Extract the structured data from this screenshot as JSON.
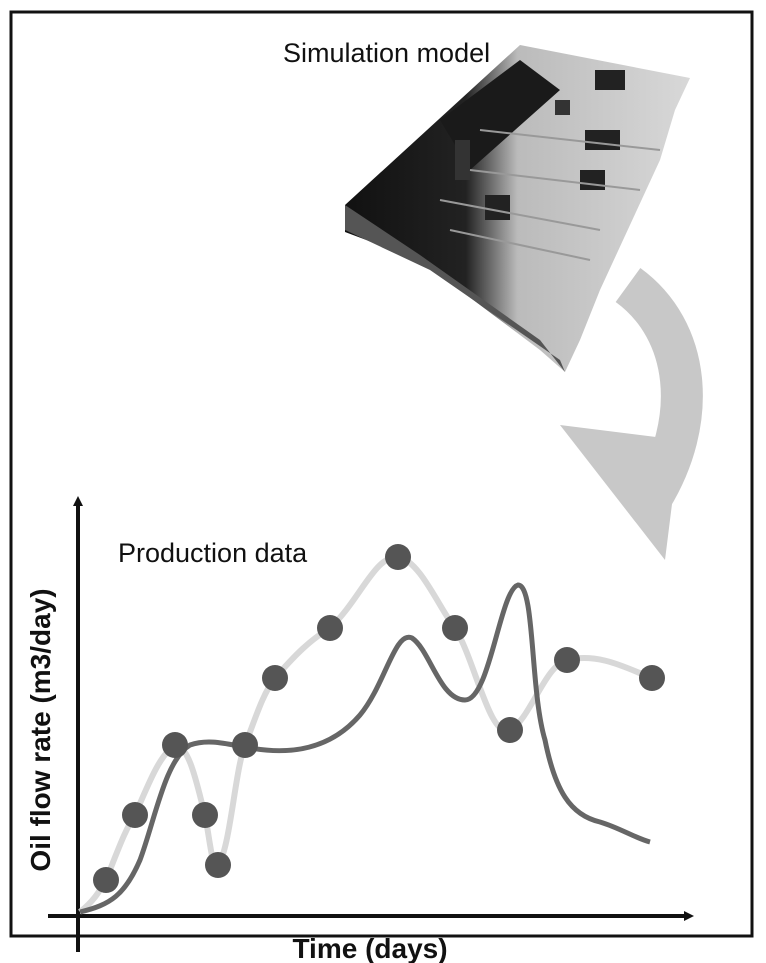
{
  "model_label": "Simulation model",
  "data_label": "Production data",
  "y_axis_label": "Oil flow rate (m3/day)",
  "x_axis_label": "Time (days)"
}
